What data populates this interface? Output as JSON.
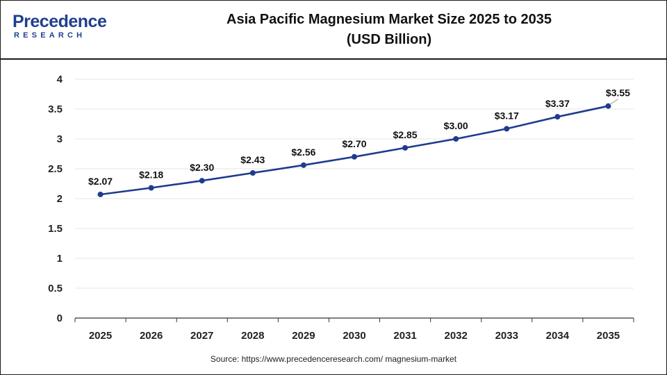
{
  "logo": {
    "main": "Precedence",
    "sub": "RESEARCH"
  },
  "title_line1": "Asia Pacific Magnesium Market Size 2025 to 2035",
  "title_line2": "(USD Billion)",
  "source": "Source: https://www.precedenceresearch.com/ magnesium-market",
  "colors": {
    "line": "#1f3b8f",
    "marker": "#1f3b8f",
    "grid": "#e6e6e6",
    "axis": "#333333",
    "brand": "#1f3f8f"
  },
  "chart_data": {
    "type": "line",
    "title": "Asia Pacific Magnesium Market Size 2025 to 2035 (USD Billion)",
    "categories": [
      "2025",
      "2026",
      "2027",
      "2028",
      "2029",
      "2030",
      "2031",
      "2032",
      "2033",
      "2034",
      "2035"
    ],
    "series": [
      {
        "values": [
          2.07,
          2.18,
          2.3,
          2.43,
          2.56,
          2.7,
          2.85,
          3.0,
          3.17,
          3.37,
          3.55
        ],
        "labels": [
          "$2.07",
          "$2.18",
          "$2.30",
          "$2.43",
          "$2.56",
          "$2.70",
          "$2.85",
          "$3.00",
          "$3.17",
          "$3.37",
          "$3.55"
        ]
      }
    ],
    "ylim": [
      0,
      4
    ],
    "yticks": [
      "0",
      "0.5",
      "1",
      "1.5",
      "2",
      "2.5",
      "3",
      "3.5",
      "4"
    ],
    "ytick_values": [
      0,
      0.5,
      1,
      1.5,
      2,
      2.5,
      3,
      3.5,
      4
    ],
    "grid": true,
    "legend": "none"
  }
}
